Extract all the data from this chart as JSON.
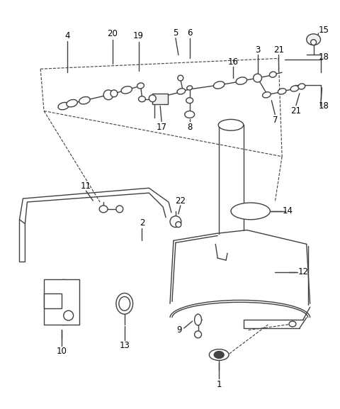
{
  "bg_color": "#ffffff",
  "line_color": "#404040",
  "fig_width": 4.8,
  "fig_height": 5.77,
  "dpi": 100
}
